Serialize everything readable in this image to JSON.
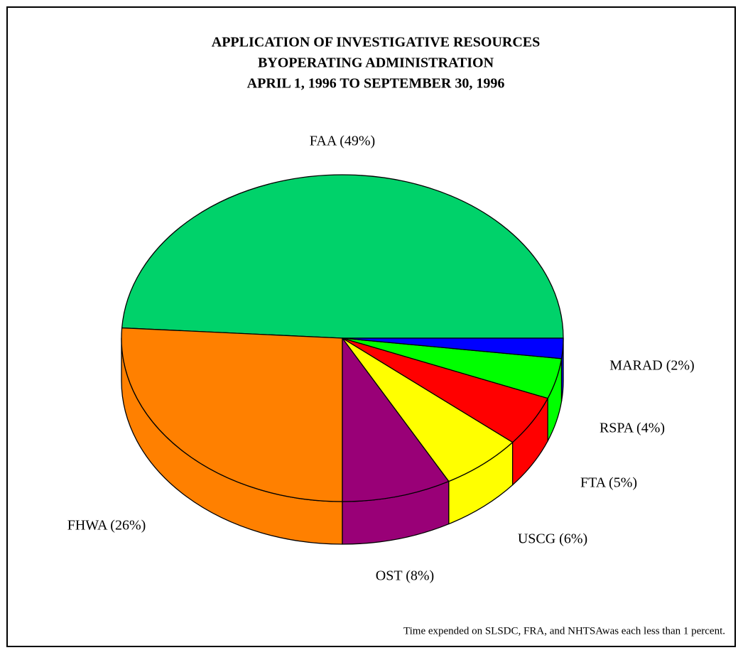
{
  "chart_data": {
    "type": "pie3d",
    "title": [
      "APPLICATION OF INVESTIGATIVE RESOURCES",
      "BYOPERATING ADMINISTRATION",
      "APRIL 1, 1996 TO SEPTEMBER 30, 1996"
    ],
    "values": [
      49,
      26,
      8,
      6,
      5,
      4,
      2
    ],
    "value_labels": [
      "FAA (49%)",
      "FHWA (26%)",
      "OST (8%)",
      "USCG (6%)",
      "FTA (5%)",
      "RSPA (4%)",
      "MARAD (2%)"
    ],
    "colors": [
      "#00d26a",
      "#ff8000",
      "#990077",
      "#ffff00",
      "#ff0000",
      "#00ff00",
      "#0000ff"
    ],
    "note": "Time expended on SLSDC, FRA, and NHTSAwas each less than 1 percent."
  }
}
